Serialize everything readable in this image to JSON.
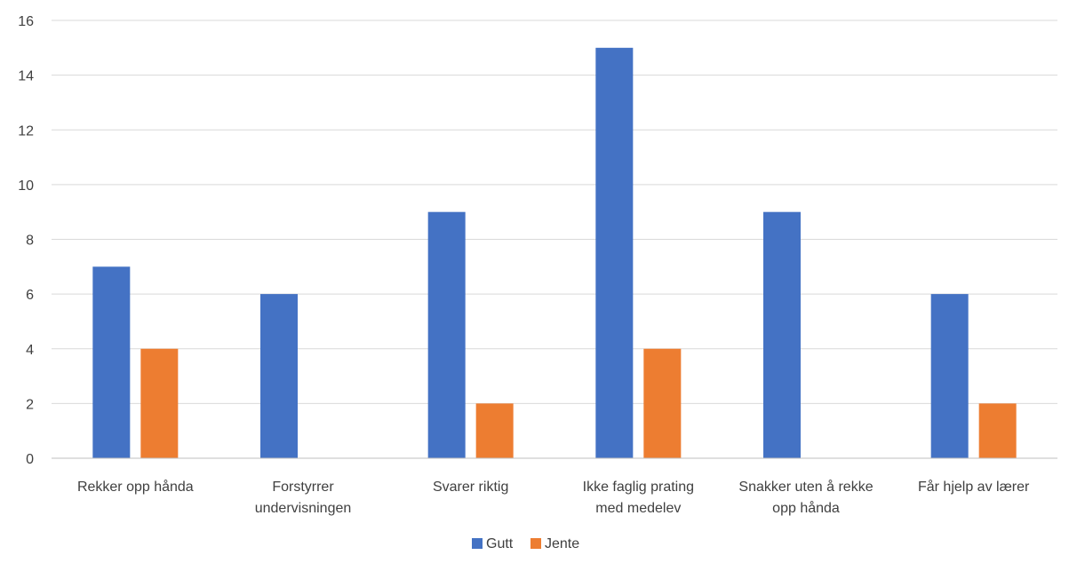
{
  "chart_data": {
    "type": "bar",
    "categories": [
      [
        "Rekker opp hånda"
      ],
      [
        "Forstyrrer",
        "undervisningen"
      ],
      [
        "Svarer riktig"
      ],
      [
        "Ikke faglig prating",
        "med medelev"
      ],
      [
        "Snakker uten å rekke",
        "opp hånda"
      ],
      [
        "Får hjelp av lærer"
      ]
    ],
    "series": [
      {
        "name": "Gutt",
        "color": "#4472c4",
        "values": [
          7,
          6,
          9,
          15,
          9,
          6
        ]
      },
      {
        "name": "Jente",
        "color": "#ed7d31",
        "values": [
          4,
          0,
          2,
          4,
          0,
          2
        ]
      }
    ],
    "ylim": [
      0,
      16
    ],
    "yticks": [
      0,
      2,
      4,
      6,
      8,
      10,
      12,
      14,
      16
    ],
    "grid": true,
    "legend_position": "bottom"
  }
}
